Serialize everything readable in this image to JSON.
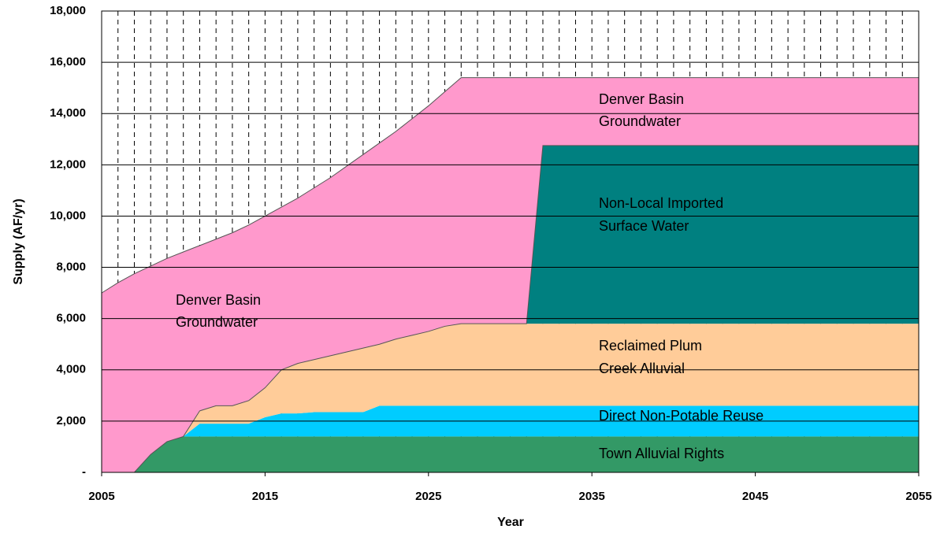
{
  "chart_data": {
    "type": "stacked_area",
    "xlabel": "Year",
    "ylabel": "Supply (AF/yr)",
    "x": [
      2005,
      2006,
      2007,
      2008,
      2009,
      2010,
      2011,
      2012,
      2013,
      2014,
      2015,
      2016,
      2017,
      2018,
      2019,
      2020,
      2021,
      2022,
      2023,
      2024,
      2025,
      2026,
      2027,
      2028,
      2029,
      2030,
      2031,
      2032,
      2033,
      2034,
      2035,
      2036,
      2037,
      2038,
      2039,
      2040,
      2041,
      2042,
      2043,
      2044,
      2045,
      2046,
      2047,
      2048,
      2049,
      2050,
      2051,
      2052,
      2053,
      2054,
      2055
    ],
    "xlim": [
      2005,
      2055
    ],
    "xticks": [
      2005,
      2015,
      2025,
      2035,
      2045,
      2055
    ],
    "ylim": [
      0,
      18000
    ],
    "yticks": [
      {
        "value": 0,
        "label": "-"
      },
      {
        "value": 2000,
        "label": "2,000"
      },
      {
        "value": 4000,
        "label": "4,000"
      },
      {
        "value": 6000,
        "label": "6,000"
      },
      {
        "value": 8000,
        "label": "8,000"
      },
      {
        "value": 10000,
        "label": "10,000"
      },
      {
        "value": 12000,
        "label": "12,000"
      },
      {
        "value": 14000,
        "label": "14,000"
      },
      {
        "value": 16000,
        "label": "16,000"
      },
      {
        "value": 18000,
        "label": "18,000"
      }
    ],
    "grid": true,
    "series": [
      {
        "label": [
          "Town Alluvial Rights"
        ],
        "color": "#339966",
        "values": [
          0,
          0,
          0,
          700,
          1200,
          1400,
          1400,
          1400,
          1400,
          1400,
          1400,
          1400,
          1400,
          1400,
          1400,
          1400,
          1400,
          1400,
          1400,
          1400,
          1400,
          1400,
          1400,
          1400,
          1400,
          1400,
          1400,
          1400,
          1400,
          1400,
          1400,
          1400,
          1400,
          1400,
          1400,
          1400,
          1400,
          1400,
          1400,
          1400,
          1400,
          1400,
          1400,
          1400,
          1400,
          1400,
          1400,
          1400,
          1400,
          1400,
          1400
        ]
      },
      {
        "label": [
          "Direct Non-Potable Reuse"
        ],
        "color": "#00ccff",
        "values": [
          0,
          0,
          0,
          0,
          0,
          0,
          500,
          500,
          500,
          500,
          750,
          900,
          900,
          950,
          950,
          950,
          950,
          1200,
          1200,
          1200,
          1200,
          1200,
          1200,
          1200,
          1200,
          1200,
          1200,
          1200,
          1200,
          1200,
          1200,
          1200,
          1200,
          1200,
          1200,
          1200,
          1200,
          1200,
          1200,
          1200,
          1200,
          1200,
          1200,
          1200,
          1200,
          1200,
          1200,
          1200,
          1200,
          1200,
          1200
        ]
      },
      {
        "label": [
          "Reclaimed Plum",
          "Creek Alluvial"
        ],
        "color": "#ffcc99",
        "values": [
          0,
          0,
          0,
          0,
          0,
          0,
          500,
          700,
          700,
          900,
          1150,
          1700,
          1950,
          2050,
          2200,
          2350,
          2500,
          2400,
          2600,
          2750,
          2900,
          3100,
          3200,
          3200,
          3200,
          3200,
          3200,
          3200,
          3200,
          3200,
          3200,
          3200,
          3200,
          3200,
          3200,
          3200,
          3200,
          3200,
          3200,
          3200,
          3200,
          3200,
          3200,
          3200,
          3200,
          3200,
          3200,
          3200,
          3200,
          3200,
          3200
        ]
      },
      {
        "label": [
          "Non-Local Imported",
          "Surface Water"
        ],
        "color": "#008080",
        "values": [
          0,
          0,
          0,
          0,
          0,
          0,
          0,
          0,
          0,
          0,
          0,
          0,
          0,
          0,
          0,
          0,
          0,
          0,
          0,
          0,
          0,
          0,
          0,
          0,
          0,
          0,
          0,
          6950,
          6950,
          6950,
          6950,
          6950,
          6950,
          6950,
          6950,
          6950,
          6950,
          6950,
          6950,
          6950,
          6950,
          6950,
          6950,
          6950,
          6950,
          6950,
          6950,
          6950,
          6950,
          6950,
          6950
        ]
      },
      {
        "label": [
          "Denver Basin",
          "Groundwater"
        ],
        "color": "#ff99cc",
        "values": [
          7000,
          7400,
          7750,
          7350,
          7150,
          7200,
          6450,
          6500,
          6750,
          6850,
          6700,
          6350,
          6450,
          6700,
          6950,
          7250,
          7550,
          7850,
          8100,
          8450,
          8800,
          9150,
          9600,
          9600,
          9600,
          9600,
          9600,
          2650,
          2650,
          2650,
          2650,
          2650,
          2650,
          2650,
          2650,
          2650,
          2650,
          2650,
          2650,
          2650,
          2650,
          2650,
          2650,
          2650,
          2650,
          2650,
          2650,
          2650,
          2650,
          2650,
          2650
        ]
      }
    ],
    "annotations": [
      [
        "Denver Basin",
        "Groundwater"
      ]
    ]
  }
}
